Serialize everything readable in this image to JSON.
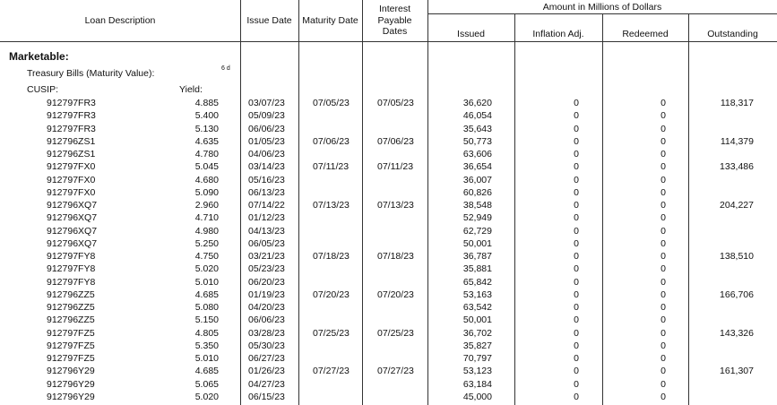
{
  "header": {
    "loan_description": "Loan Description",
    "issue_date": "Issue Date",
    "maturity_date": "Maturity Date",
    "interest_dates": "Interest\nPayable\nDates",
    "amount_group": "Amount in Millions of Dollars",
    "issued": "Issued",
    "inflation_adj": "Inflation Adj.",
    "redeemed": "Redeemed",
    "outstanding": "Outstanding"
  },
  "section": {
    "title": "Marketable:",
    "subtitle": "Treasury Bills (Maturity Value):",
    "footnote": "6 d",
    "cusip_label": "CUSIP:",
    "yield_label": "Yield:"
  },
  "rows": [
    {
      "cusip": "912797FR3",
      "yield": "4.885",
      "issue_date": "03/07/23",
      "maturity_date": "07/05/23",
      "interest_dates": "07/05/23",
      "issued": "36,620",
      "inflation_adj": "0",
      "redeemed": "0",
      "outstanding": "118,317"
    },
    {
      "cusip": "912797FR3",
      "yield": "5.400",
      "issue_date": "05/09/23",
      "issued": "46,054",
      "inflation_adj": "0",
      "redeemed": "0"
    },
    {
      "cusip": "912797FR3",
      "yield": "5.130",
      "issue_date": "06/06/23",
      "issued": "35,643",
      "inflation_adj": "0",
      "redeemed": "0"
    },
    {
      "cusip": "912796ZS1",
      "yield": "4.635",
      "issue_date": "01/05/23",
      "maturity_date": "07/06/23",
      "interest_dates": "07/06/23",
      "issued": "50,773",
      "inflation_adj": "0",
      "redeemed": "0",
      "outstanding": "114,379"
    },
    {
      "cusip": "912796ZS1",
      "yield": "4.780",
      "issue_date": "04/06/23",
      "issued": "63,606",
      "inflation_adj": "0",
      "redeemed": "0"
    },
    {
      "cusip": "912797FX0",
      "yield": "5.045",
      "issue_date": "03/14/23",
      "maturity_date": "07/11/23",
      "interest_dates": "07/11/23",
      "issued": "36,654",
      "inflation_adj": "0",
      "redeemed": "0",
      "outstanding": "133,486"
    },
    {
      "cusip": "912797FX0",
      "yield": "4.680",
      "issue_date": "05/16/23",
      "issued": "36,007",
      "inflation_adj": "0",
      "redeemed": "0"
    },
    {
      "cusip": "912797FX0",
      "yield": "5.090",
      "issue_date": "06/13/23",
      "issued": "60,826",
      "inflation_adj": "0",
      "redeemed": "0"
    },
    {
      "cusip": "912796XQ7",
      "yield": "2.960",
      "issue_date": "07/14/22",
      "maturity_date": "07/13/23",
      "interest_dates": "07/13/23",
      "issued": "38,548",
      "inflation_adj": "0",
      "redeemed": "0",
      "outstanding": "204,227"
    },
    {
      "cusip": "912796XQ7",
      "yield": "4.710",
      "issue_date": "01/12/23",
      "issued": "52,949",
      "inflation_adj": "0",
      "redeemed": "0"
    },
    {
      "cusip": "912796XQ7",
      "yield": "4.980",
      "issue_date": "04/13/23",
      "issued": "62,729",
      "inflation_adj": "0",
      "redeemed": "0"
    },
    {
      "cusip": "912796XQ7",
      "yield": "5.250",
      "issue_date": "06/05/23",
      "issued": "50,001",
      "inflation_adj": "0",
      "redeemed": "0"
    },
    {
      "cusip": "912797FY8",
      "yield": "4.750",
      "issue_date": "03/21/23",
      "maturity_date": "07/18/23",
      "interest_dates": "07/18/23",
      "issued": "36,787",
      "inflation_adj": "0",
      "redeemed": "0",
      "outstanding": "138,510"
    },
    {
      "cusip": "912797FY8",
      "yield": "5.020",
      "issue_date": "05/23/23",
      "issued": "35,881",
      "inflation_adj": "0",
      "redeemed": "0"
    },
    {
      "cusip": "912797FY8",
      "yield": "5.010",
      "issue_date": "06/20/23",
      "issued": "65,842",
      "inflation_adj": "0",
      "redeemed": "0"
    },
    {
      "cusip": "912796ZZ5",
      "yield": "4.685",
      "issue_date": "01/19/23",
      "maturity_date": "07/20/23",
      "interest_dates": "07/20/23",
      "issued": "53,163",
      "inflation_adj": "0",
      "redeemed": "0",
      "outstanding": "166,706"
    },
    {
      "cusip": "912796ZZ5",
      "yield": "5.080",
      "issue_date": "04/20/23",
      "issued": "63,542",
      "inflation_adj": "0",
      "redeemed": "0"
    },
    {
      "cusip": "912796ZZ5",
      "yield": "5.150",
      "issue_date": "06/06/23",
      "issued": "50,001",
      "inflation_adj": "0",
      "redeemed": "0"
    },
    {
      "cusip": "912797FZ5",
      "yield": "4.805",
      "issue_date": "03/28/23",
      "maturity_date": "07/25/23",
      "interest_dates": "07/25/23",
      "issued": "36,702",
      "inflation_adj": "0",
      "redeemed": "0",
      "outstanding": "143,326"
    },
    {
      "cusip": "912797FZ5",
      "yield": "5.350",
      "issue_date": "05/30/23",
      "issued": "35,827",
      "inflation_adj": "0",
      "redeemed": "0"
    },
    {
      "cusip": "912797FZ5",
      "yield": "5.010",
      "issue_date": "06/27/23",
      "issued": "70,797",
      "inflation_adj": "0",
      "redeemed": "0"
    },
    {
      "cusip": "912796Y29",
      "yield": "4.685",
      "issue_date": "01/26/23",
      "maturity_date": "07/27/23",
      "interest_dates": "07/27/23",
      "issued": "53,123",
      "inflation_adj": "0",
      "redeemed": "0",
      "outstanding": "161,307"
    },
    {
      "cusip": "912796Y29",
      "yield": "5.065",
      "issue_date": "04/27/23",
      "issued": "63,184",
      "inflation_adj": "0",
      "redeemed": "0"
    },
    {
      "cusip": "912796Y29",
      "yield": "5.020",
      "issue_date": "06/15/23",
      "issued": "45,000",
      "inflation_adj": "0",
      "redeemed": "0"
    }
  ]
}
